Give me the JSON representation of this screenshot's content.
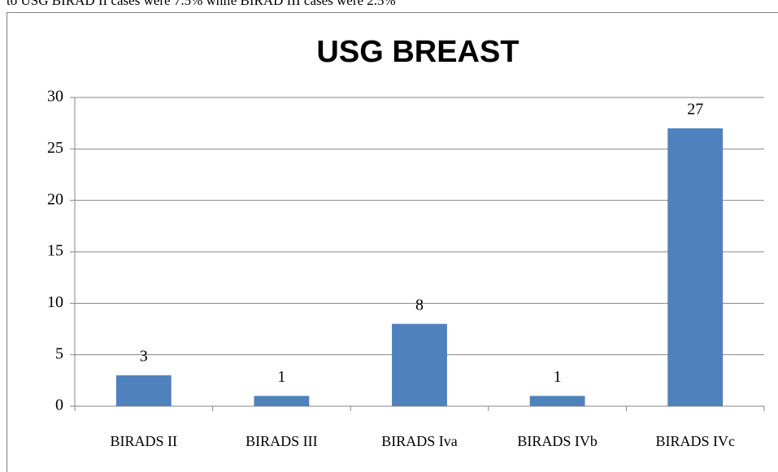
{
  "text": "to USG BIRAD II cases were 7.5% while BIRAD III cases were 2.5%",
  "chart_data": {
    "type": "bar",
    "title": "USG BREAST",
    "categories": [
      "BIRADS II",
      "BIRADS III",
      "BIRADS Iva",
      "BIRADS IVb",
      "BIRADS IVc"
    ],
    "values": [
      3,
      1,
      8,
      1,
      27
    ],
    "color": "#4f81bd",
    "ylim": [
      0,
      30
    ],
    "yticks": [
      0,
      5,
      10,
      15,
      20,
      25,
      30
    ],
    "grid": true
  }
}
